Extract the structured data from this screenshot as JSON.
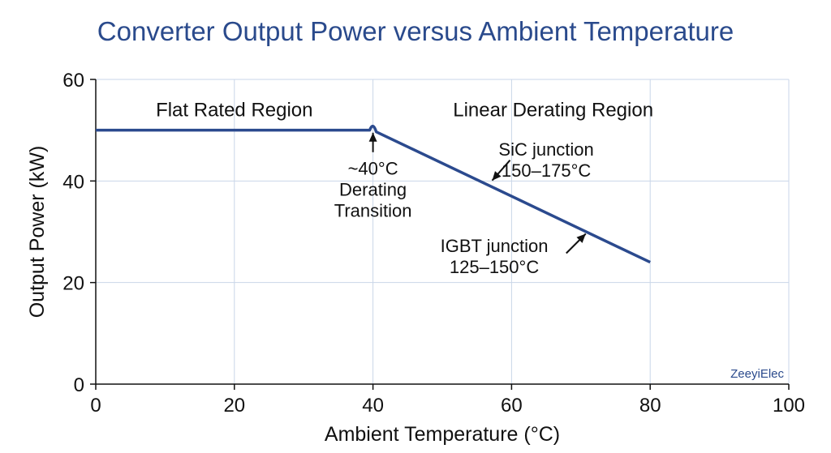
{
  "chart_data": {
    "type": "line",
    "title": "Converter Output Power versus Ambient Temperature",
    "xlabel": "Ambient Temperature (°C)",
    "ylabel": "Output Power (kW)",
    "xlim": [
      0,
      100
    ],
    "ylim": [
      0,
      60
    ],
    "xticks": [
      0,
      20,
      40,
      60,
      80,
      100
    ],
    "yticks": [
      0,
      20,
      40,
      60
    ],
    "grid": true,
    "series": [
      {
        "color": "#2b4a8e",
        "x": [
          0,
          40,
          80
        ],
        "y": [
          50,
          50,
          24
        ]
      }
    ],
    "regions": [
      {
        "label": "Flat Rated Region",
        "x": 20,
        "y": 54
      },
      {
        "label": "Linear Derating Region",
        "x": 66,
        "y": 54
      }
    ],
    "annotations": [
      {
        "name": "transition",
        "lines": [
          "~40°C",
          "Derating",
          "Transition"
        ],
        "text_x": 40,
        "text_y": 42.5,
        "arrow_to": [
          40,
          49.5
        ]
      },
      {
        "name": "sic",
        "lines": [
          "SiC junction",
          "150–175°C"
        ],
        "text_x": 65,
        "text_y": 46.3,
        "arrow_to": [
          57.2,
          40.1
        ]
      },
      {
        "name": "igbt",
        "lines": [
          "IGBT junction",
          "125–150°C"
        ],
        "text_x": 57.5,
        "text_y": 27.3,
        "arrow_to": [
          70.7,
          29.6
        ]
      }
    ],
    "watermark": "ZeeyiElec"
  }
}
